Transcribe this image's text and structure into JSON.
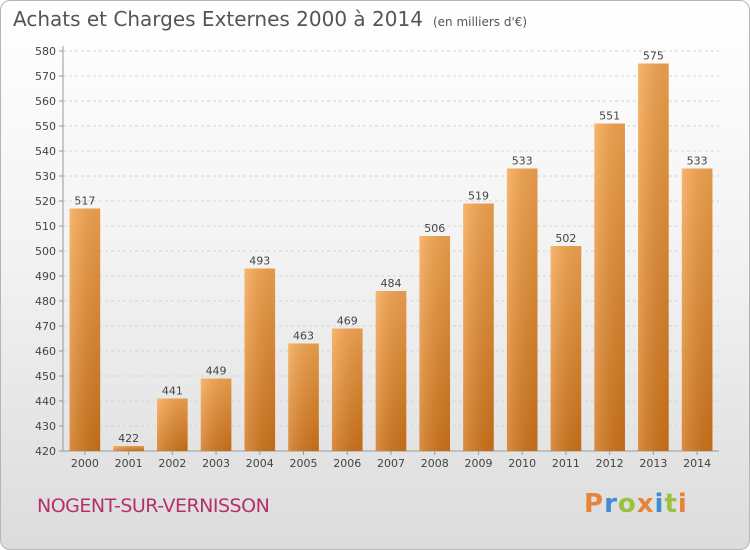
{
  "title": "Achats et Charges Externes 2000 à 2014",
  "unit": "(en milliers d'€)",
  "town": "NOGENT-SUR-VERNISSON",
  "logo": "Proxiti",
  "colors": {
    "bar_top": "#f6a64f",
    "bar_bottom": "#d07419",
    "town": "#b5306a",
    "logo_letters": [
      "#e8843a",
      "#3c8ed0",
      "#9bc23c",
      "#e8843a",
      "#3c8ed0",
      "#9bc23c",
      "#e8843a"
    ]
  },
  "chart_data": {
    "type": "bar",
    "title": "Achats et Charges Externes 2000 à 2014",
    "subtitle": "(en milliers d'€)",
    "categories": [
      "2000",
      "2001",
      "2002",
      "2003",
      "2004",
      "2005",
      "2006",
      "2007",
      "2008",
      "2009",
      "2010",
      "2011",
      "2012",
      "2013",
      "2014"
    ],
    "values": [
      517,
      422,
      441,
      449,
      493,
      463,
      469,
      484,
      506,
      519,
      533,
      502,
      551,
      575,
      533
    ],
    "ylim": [
      420,
      580
    ],
    "yticks": [
      420,
      430,
      440,
      450,
      460,
      470,
      480,
      490,
      500,
      510,
      520,
      530,
      540,
      550,
      560,
      570,
      580
    ],
    "grid": true,
    "xlabel": "",
    "ylabel": ""
  }
}
